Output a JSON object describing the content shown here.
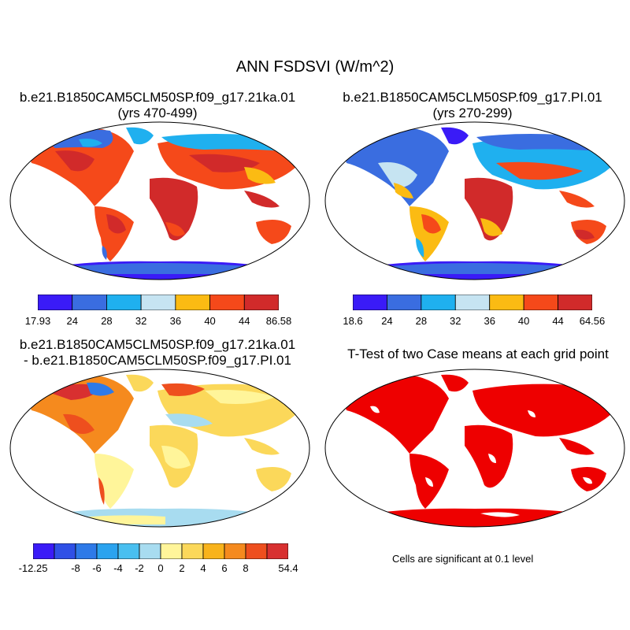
{
  "main_title": "ANN FSDSVI (W/m^2)",
  "panels": {
    "case1": {
      "title": "b.e21.B1850CAM5CLM50SP.f09_g17.21ka.01",
      "subtitle": "(yrs 470-499)"
    },
    "case2": {
      "title": "b.e21.B1850CAM5CLM50SP.f09_g17.PI.01",
      "subtitle": "(yrs 270-299)"
    },
    "diff": {
      "title": "b.e21.B1850CAM5CLM50SP.f09_g17.21ka.01",
      "subtitle": "- b.e21.B1850CAM5CLM50SP.f09_g17.PI.01"
    },
    "ttest": {
      "title": "T-Test of two Case means at each grid point",
      "note": "Cells are significant at 0.1 level"
    }
  },
  "colorbars": {
    "case1": {
      "colors": [
        "#3a1bf7",
        "#3a6de0",
        "#1fb0ef",
        "#c6e4f2",
        "#fbbb13",
        "#f5491a",
        "#d12a2a"
      ],
      "labels": [
        "17.93",
        "24",
        "28",
        "32",
        "36",
        "40",
        "44",
        "86.58"
      ]
    },
    "case2": {
      "colors": [
        "#3a1bf7",
        "#3a6de0",
        "#1fb0ef",
        "#c6e4f2",
        "#fbbb13",
        "#f5491a",
        "#d12a2a"
      ],
      "labels": [
        "18.6",
        "24",
        "28",
        "32",
        "36",
        "40",
        "44",
        "64.56"
      ]
    },
    "diff": {
      "colors": [
        "#3a1bf7",
        "#2f50e6",
        "#2e7ae8",
        "#2ba3ef",
        "#49bff0",
        "#a8dcf0",
        "#fff59a",
        "#fbd85a",
        "#f8b31b",
        "#f58a1e",
        "#ee4f1e",
        "#d83030"
      ],
      "labels": [
        "-12.25",
        "",
        "-8",
        "-6",
        "-4",
        "-2",
        "0",
        "2",
        "4",
        "6",
        "8",
        "",
        "54.4"
      ]
    }
  },
  "map_colors": {
    "ocean": "#ffffff",
    "significant": "#ee0000"
  }
}
